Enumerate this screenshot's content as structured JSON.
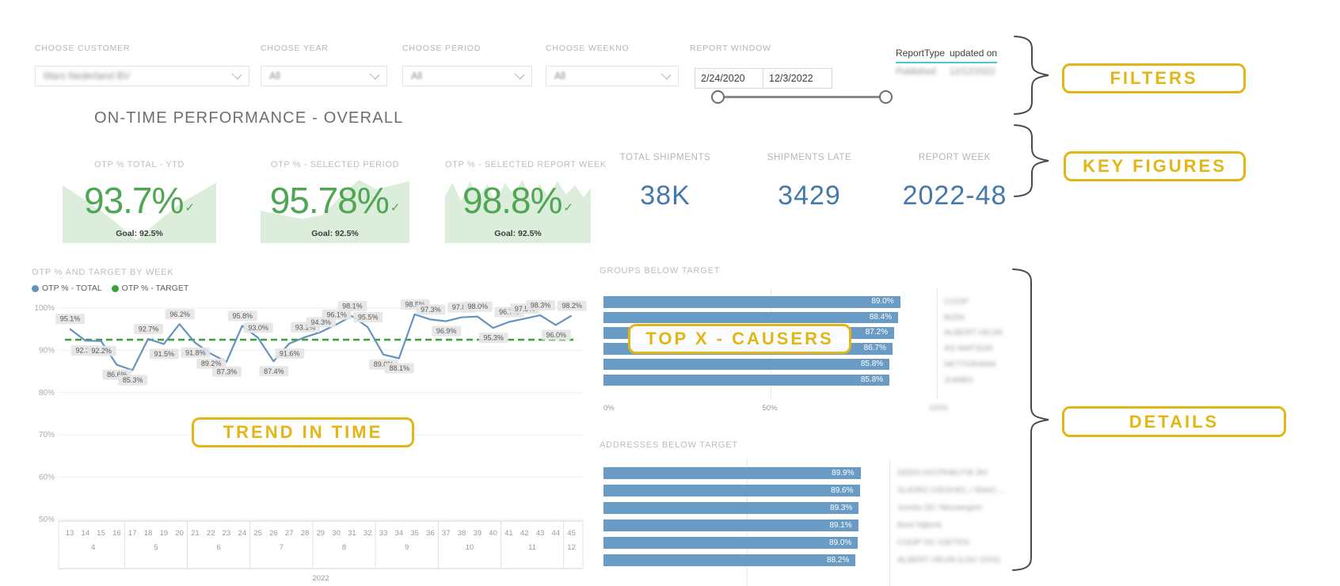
{
  "page": {
    "title": "ON-TIME PERFORMANCE - OVERALL"
  },
  "filters": {
    "customer": {
      "label": "CHOOSE CUSTOMER",
      "value": "Mars Nederland BV"
    },
    "year": {
      "label": "CHOOSE YEAR",
      "value": "All"
    },
    "period": {
      "label": "CHOOSE PERIOD",
      "value": "All"
    },
    "weekno": {
      "label": "CHOOSE WEEKNO",
      "value": "All"
    },
    "report_window": {
      "label": "REPORT WINDOW",
      "start_date": "2/24/2020",
      "end_date": "12/3/2022"
    }
  },
  "report_info": {
    "columns": [
      "ReportType",
      "updated on"
    ],
    "row": [
      "Published",
      "12/12/2022"
    ]
  },
  "kpi_cards": [
    {
      "label": "OTP % TOTAL - YTD",
      "value": "93.7%",
      "goal": "Goal: 92.5%"
    },
    {
      "label": "OTP % - SELECTED PERIOD",
      "value": "95.78%",
      "goal": "Goal: 92.5%"
    },
    {
      "label": "OTP % - SELECTED REPORT WEEK",
      "value": "98.8%",
      "goal": "Goal: 92.5%"
    }
  ],
  "kpi_stats": [
    {
      "label": "TOTAL SHIPMENTS",
      "value": "38K"
    },
    {
      "label": "SHIPMENTS LATE",
      "value": "3429"
    },
    {
      "label": "REPORT WEEK",
      "value": "2022-48"
    }
  ],
  "annotations": {
    "accent_color": "#E3B616",
    "filters": "FILTERS",
    "key_figures": "KEY FIGURES",
    "trend": "TREND IN TIME",
    "causers": "TOP X - CAUSERS",
    "details": "DETAILS"
  },
  "chart_data": [
    {
      "type": "line",
      "title": "OTP % AND TARGET BY WEEK",
      "x": [
        13,
        14,
        15,
        16,
        17,
        18,
        19,
        20,
        21,
        22,
        23,
        24,
        25,
        26,
        27,
        28,
        29,
        30,
        31,
        32,
        33,
        34,
        35,
        36,
        37,
        38,
        39,
        40,
        41,
        42,
        43,
        44,
        45
      ],
      "month_groups": [
        {
          "label": "4",
          "from": 13,
          "to": 16
        },
        {
          "label": "5",
          "from": 17,
          "to": 20
        },
        {
          "label": "6",
          "from": 21,
          "to": 24
        },
        {
          "label": "7",
          "from": 25,
          "to": 28
        },
        {
          "label": "8",
          "from": 29,
          "to": 32
        },
        {
          "label": "9",
          "from": 33,
          "to": 36
        },
        {
          "label": "10",
          "from": 37,
          "to": 40
        },
        {
          "label": "11",
          "from": 41,
          "to": 44
        },
        {
          "label": "12",
          "from": 45,
          "to": 45
        }
      ],
      "year_label": "2022",
      "ylim": [
        50,
        100
      ],
      "yticks": [
        100,
        90,
        80,
        70,
        60,
        50
      ],
      "target_value": 92.5,
      "series": [
        {
          "name": "OTP % - TOTAL",
          "color": "#6593BE",
          "values": [
            95.1,
            92.3,
            92.2,
            86.6,
            85.3,
            92.7,
            91.5,
            96.2,
            91.8,
            89.2,
            87.3,
            95.8,
            93.0,
            87.4,
            91.6,
            93.1,
            94.3,
            96.1,
            98.1,
            95.5,
            89.0,
            88.1,
            98.5,
            97.3,
            96.9,
            97.8,
            98.0,
            95.3,
            96.7,
            97.5,
            98.3,
            96.0,
            98.2
          ]
        },
        {
          "name": "OTP % - TARGET",
          "color": "#37A337",
          "style": "dashed"
        }
      ]
    },
    {
      "type": "bar",
      "title": "GROUPS BELOW TARGET",
      "orientation": "horizontal",
      "categories": [
        "COOP",
        "BONI",
        "ALBERT HEIJN",
        "AS WATSON",
        "NETTORAMA",
        "JUMBO"
      ],
      "values": [
        89.0,
        88.4,
        87.2,
        86.7,
        85.8,
        85.8
      ],
      "xlim": [
        0,
        100
      ],
      "x_axis_labels": [
        "0%",
        "50%",
        "100%"
      ],
      "bar_color": "#699BC5",
      "categories_blurred": true
    },
    {
      "type": "bar",
      "title": "ADDRESSES BELOW TARGET",
      "orientation": "horizontal",
      "categories": [
        "DEEN DISTRIBUTIE BV",
        "SLIGRO (VEGHEL / SNAC…",
        "Jumbo DC Nieuwegein",
        "Boni Nijkerk",
        "COOP DC GIETEN",
        "ALBERT HEIJN (LDC OSS)"
      ],
      "values": [
        89.9,
        89.6,
        89.3,
        89.1,
        89.0,
        88.2
      ],
      "xlim": [
        0,
        100
      ],
      "bar_color": "#699BC5",
      "categories_blurred": true
    }
  ]
}
